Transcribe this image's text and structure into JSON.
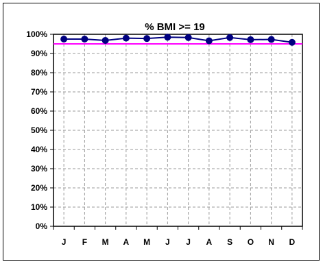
{
  "chart_data": {
    "type": "line",
    "title": "% BMI >= 19",
    "categories": [
      "J",
      "F",
      "M",
      "A",
      "M",
      "J",
      "J",
      "A",
      "S",
      "O",
      "N",
      "D"
    ],
    "series": [
      {
        "values": [
          97.5,
          97.5,
          96.8,
          98.0,
          97.8,
          98.5,
          98.3,
          96.6,
          98.3,
          97.2,
          97.3,
          95.8
        ],
        "color": "#000080"
      }
    ],
    "reference_line": {
      "value": 95,
      "color": "#ff00ff"
    },
    "ylim": [
      0,
      100
    ],
    "yticks": [
      "0%",
      "10%",
      "20%",
      "30%",
      "40%",
      "50%",
      "60%",
      "70%",
      "80%",
      "90%",
      "100%"
    ],
    "grid": true,
    "legend": "none"
  }
}
